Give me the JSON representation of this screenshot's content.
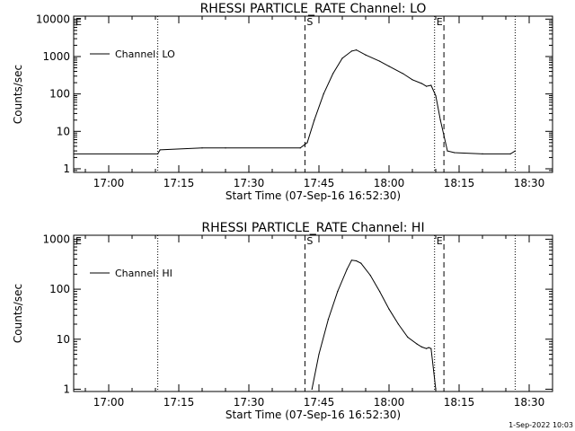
{
  "footer_timestamp": "1-Sep-2022 10:03",
  "chart_data": [
    {
      "type": "line",
      "title": "RHESSI PARTICLE_RATE Channel: LO",
      "xlabel": "Start Time (07-Sep-16 16:52:30)",
      "ylabel": "Counts/sec",
      "yscale": "log",
      "x_unit": "minutes",
      "xlim": [
        "16:52:30",
        "18:35"
      ],
      "ylim": [
        0.8,
        12000
      ],
      "x_ticks": [
        "17:00",
        "17:15",
        "17:30",
        "17:45",
        "18:00",
        "18:15",
        "18:30"
      ],
      "y_ticks": [
        "1",
        "10",
        "100",
        "1000",
        "10000"
      ],
      "legend": {
        "entries": [
          "Channel: LO"
        ],
        "placement": "top-left"
      },
      "markers": [
        {
          "label": "E",
          "time": "16:52:30",
          "style": "dotted"
        },
        {
          "label": "",
          "time": "17:10:30",
          "style": "dotted"
        },
        {
          "label": "S",
          "time": "17:42:00",
          "style": "dashed"
        },
        {
          "label": "E",
          "time": "18:09:45",
          "style": "dotted"
        },
        {
          "label": "",
          "time": "18:11:45",
          "style": "dashed"
        },
        {
          "label": "",
          "time": "18:27:00",
          "style": "dotted"
        }
      ],
      "series": [
        {
          "name": "Channel: LO",
          "x": [
            "16:52:30",
            "17:10:30",
            "17:11:00",
            "17:20:00",
            "17:25:00",
            "17:41:00",
            "17:42:30",
            "17:44:00",
            "17:46:00",
            "17:48:00",
            "17:50:00",
            "17:52:00",
            "17:53:00",
            "17:55:00",
            "17:58:00",
            "18:00:00",
            "18:03:00",
            "18:05:00",
            "18:07:00",
            "18:08:00",
            "18:09:00",
            "18:10:00",
            "18:11:00",
            "18:12:30",
            "18:14:00",
            "18:20:00",
            "18:26:00",
            "18:27:00"
          ],
          "y": [
            2.5,
            2.5,
            3.2,
            3.6,
            3.6,
            3.6,
            5,
            20,
            100,
            350,
            900,
            1400,
            1500,
            1100,
            750,
            550,
            350,
            240,
            190,
            160,
            170,
            90,
            20,
            3,
            2.7,
            2.5,
            2.5,
            3
          ]
        }
      ]
    },
    {
      "type": "line",
      "title": "RHESSI PARTICLE_RATE Channel: HI",
      "xlabel": "Start Time (07-Sep-16 16:52:30)",
      "ylabel": "Counts/sec",
      "yscale": "log",
      "x_unit": "minutes",
      "xlim": [
        "16:52:30",
        "18:35"
      ],
      "ylim": [
        0.9,
        1200
      ],
      "x_ticks": [
        "17:00",
        "17:15",
        "17:30",
        "17:45",
        "18:00",
        "18:15",
        "18:30"
      ],
      "y_ticks": [
        "1",
        "10",
        "100",
        "1000"
      ],
      "legend": {
        "entries": [
          "Channel: HI"
        ],
        "placement": "top-left"
      },
      "markers": [
        {
          "label": "E",
          "time": "16:52:30",
          "style": "dotted"
        },
        {
          "label": "",
          "time": "17:10:30",
          "style": "dotted"
        },
        {
          "label": "S",
          "time": "17:42:00",
          "style": "dashed"
        },
        {
          "label": "E",
          "time": "18:09:45",
          "style": "dotted"
        },
        {
          "label": "",
          "time": "18:11:45",
          "style": "dashed"
        },
        {
          "label": "",
          "time": "18:27:00",
          "style": "dotted"
        }
      ],
      "series": [
        {
          "name": "Channel: HI",
          "x": [
            "17:43:30",
            "17:45:00",
            "17:47:00",
            "17:49:00",
            "17:51:00",
            "17:52:00",
            "17:53:00",
            "17:54:00",
            "17:56:00",
            "17:58:00",
            "18:00:00",
            "18:02:00",
            "18:04:00",
            "18:06:00",
            "18:07:00",
            "18:08:00",
            "18:08:30",
            "18:09:00",
            "18:10:00"
          ],
          "y": [
            1,
            5,
            25,
            90,
            250,
            380,
            370,
            330,
            190,
            90,
            40,
            20,
            11,
            8,
            7,
            6.5,
            6.8,
            6.5,
            1
          ]
        }
      ]
    }
  ]
}
